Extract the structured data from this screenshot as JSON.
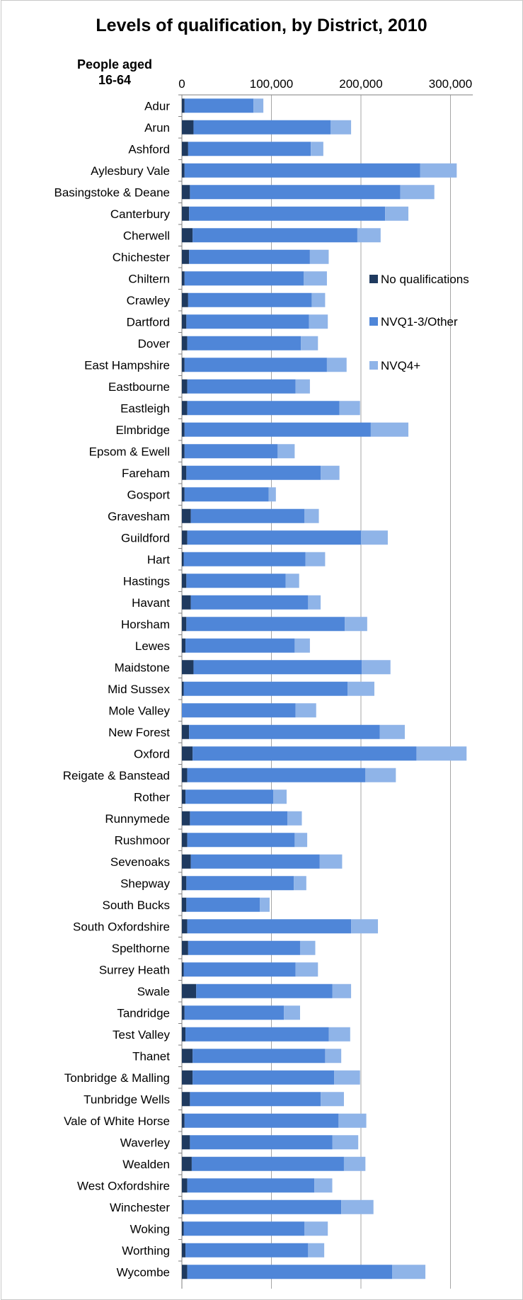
{
  "title": "Levels of qualification, by District, 2010",
  "axis_caption": [
    "People aged",
    "16-64"
  ],
  "colors": {
    "No qualifications": "#1f3a5f",
    "NVQ1-3/Other": "#4f86d8",
    "NVQ4+": "#8fb4e8",
    "grid": "#a6a6a6",
    "axis": "#7f7f7f"
  },
  "chart_data": {
    "type": "bar",
    "orientation": "horizontal",
    "stacked": true,
    "title": "Levels of qualification, by District, 2010",
    "xlabel": "",
    "ylabel": "People aged 16-64",
    "xlim": [
      0,
      325000
    ],
    "xticks": [
      0,
      100000,
      200000,
      300000
    ],
    "xtick_labels": [
      "0",
      "100,000",
      "200,000",
      "300,000"
    ],
    "grid": true,
    "legend_position": "right",
    "categories": [
      "Adur",
      "Arun",
      "Ashford",
      "Aylesbury Vale",
      "Basingstoke & Deane",
      "Canterbury",
      "Cherwell",
      "Chichester",
      "Chiltern",
      "Crawley",
      "Dartford",
      "Dover",
      "East Hampshire",
      "Eastbourne",
      "Eastleigh",
      "Elmbridge",
      "Epsom & Ewell",
      "Fareham",
      "Gosport",
      "Gravesham",
      "Guildford",
      "Hart",
      "Hastings",
      "Havant",
      "Horsham",
      "Lewes",
      "Maidstone",
      "Mid Sussex",
      "Mole Valley",
      "New Forest",
      "Oxford",
      "Reigate & Banstead",
      "Rother",
      "Runnymede",
      "Rushmoor",
      "Sevenoaks",
      "Shepway",
      "South Bucks",
      "South Oxfordshire",
      "Spelthorne",
      "Surrey Heath",
      "Swale",
      "Tandridge",
      "Test Valley",
      "Thanet",
      "Tonbridge & Malling",
      "Tunbridge Wells",
      "Vale of White Horse",
      "Waverley",
      "Wealden",
      "West Oxfordshire",
      "Winchester",
      "Woking",
      "Worthing",
      "Wycombe"
    ],
    "series": [
      {
        "name": "No qualifications",
        "values": [
          3000,
          13000,
          7000,
          3000,
          9000,
          8000,
          12000,
          8000,
          3000,
          7000,
          5000,
          6000,
          3000,
          6000,
          6000,
          3000,
          3000,
          5000,
          3000,
          10000,
          6000,
          2000,
          5000,
          10000,
          5000,
          4000,
          13000,
          2000,
          0,
          8000,
          12000,
          6000,
          4000,
          9000,
          6000,
          10000,
          5000,
          5000,
          6000,
          7000,
          2000,
          16000,
          3000,
          4000,
          12000,
          12000,
          9000,
          3000,
          9000,
          11000,
          6000,
          2000,
          2000,
          4000,
          6000
        ]
      },
      {
        "name": "NVQ1-3/Other",
        "values": [
          77000,
          153000,
          137000,
          263000,
          235000,
          219000,
          184000,
          135000,
          133000,
          138000,
          137000,
          127000,
          159000,
          121000,
          170000,
          208000,
          104000,
          150000,
          94000,
          127000,
          194000,
          136000,
          111000,
          131000,
          177000,
          122000,
          188000,
          183000,
          127000,
          213000,
          250000,
          199000,
          98000,
          109000,
          120000,
          144000,
          120000,
          82000,
          183000,
          125000,
          125000,
          152000,
          111000,
          160000,
          148000,
          158000,
          146000,
          172000,
          159000,
          170000,
          142000,
          176000,
          135000,
          137000,
          229000
        ]
      },
      {
        "name": "NVQ4+",
        "values": [
          11000,
          23000,
          14000,
          41000,
          38000,
          26000,
          26000,
          21000,
          26000,
          15000,
          21000,
          19000,
          22000,
          16000,
          23000,
          42000,
          19000,
          21000,
          8000,
          16000,
          30000,
          22000,
          15000,
          14000,
          25000,
          17000,
          32000,
          30000,
          23000,
          28000,
          56000,
          34000,
          15000,
          16000,
          14000,
          25000,
          14000,
          11000,
          30000,
          17000,
          25000,
          21000,
          18000,
          24000,
          18000,
          29000,
          26000,
          31000,
          29000,
          24000,
          20000,
          36000,
          26000,
          18000,
          37000
        ]
      }
    ]
  }
}
